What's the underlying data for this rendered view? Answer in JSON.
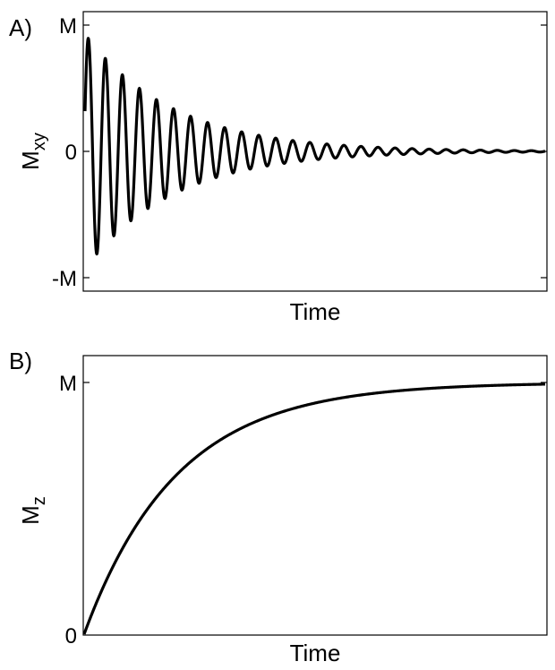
{
  "figure": {
    "background": "#ffffff",
    "line_color": "#000000"
  },
  "chart_data": [
    {
      "type": "line",
      "panel_label": "A)",
      "xlabel": "Time",
      "ylabel_main": "M",
      "ylabel_sub": "xy",
      "xlim": [
        0,
        1
      ],
      "ylim": [
        -1.07,
        1.07
      ],
      "x_ticks_labeled": false,
      "y_ticks": [
        {
          "value": 1,
          "label": "M"
        },
        {
          "value": 0,
          "label": "0"
        },
        {
          "value": -1,
          "label": "-M"
        }
      ],
      "grid": false,
      "legend": "none",
      "series": [
        {
          "function": "damped cosine",
          "amplitude": 0.93,
          "decay_time": 0.19,
          "oscillations": 27
        }
      ]
    },
    {
      "type": "line",
      "panel_label": "B)",
      "xlabel": "Time",
      "ylabel_main": "M",
      "ylabel_sub": "z",
      "xlim": [
        0,
        1
      ],
      "ylim": [
        0,
        1.07
      ],
      "x_ticks_labeled": false,
      "y_ticks": [
        {
          "value": 1,
          "label": "M"
        },
        {
          "value": 0,
          "label": "0"
        }
      ],
      "grid": false,
      "legend": "none",
      "series": [
        {
          "function": "exponential recovery",
          "amplitude": 1.0,
          "recovery_time": 0.2
        }
      ]
    }
  ]
}
